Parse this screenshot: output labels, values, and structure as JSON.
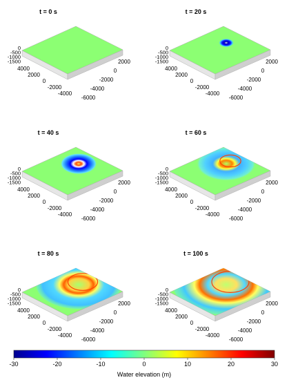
{
  "chart_data": {
    "type": "heatmap",
    "panels": [
      {
        "title": "t = 0 s"
      },
      {
        "title": "t = 20 s"
      },
      {
        "title": "t = 40 s"
      },
      {
        "title": "t = 60 s"
      },
      {
        "title": "t = 80 s"
      },
      {
        "title": "t = 100 s"
      }
    ],
    "z_ticks": [
      "0",
      "-500",
      "-1000",
      "-1500"
    ],
    "y_ticks": [
      "4000",
      "2000",
      "0",
      "-2000",
      "-4000"
    ],
    "x_ticks": [
      "2000",
      "0",
      "-2000",
      "-4000",
      "-6000"
    ],
    "colorbar": {
      "label": "Water elevation (m)",
      "range": [
        -30,
        30
      ],
      "ticks": [
        "-30",
        "-20",
        "-10",
        "0",
        "10",
        "20",
        "30"
      ],
      "colormap": "jet"
    }
  }
}
